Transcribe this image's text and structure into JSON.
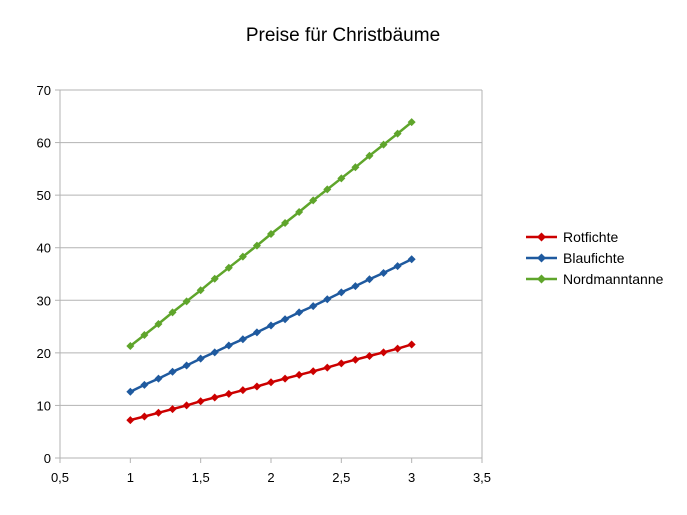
{
  "chart_data": {
    "type": "line",
    "title": "Preise für Christbäume",
    "xlabel": "",
    "ylabel": "",
    "xlim": [
      0.5,
      3.5
    ],
    "ylim": [
      0,
      70
    ],
    "x_ticks": [
      0.5,
      1,
      1.5,
      2,
      2.5,
      3,
      3.5
    ],
    "x_tick_labels": [
      "0,5",
      "1",
      "1,5",
      "2",
      "2,5",
      "3",
      "3,5"
    ],
    "y_ticks": [
      0,
      10,
      20,
      30,
      40,
      50,
      60,
      70
    ],
    "y_tick_labels": [
      "0",
      "10",
      "20",
      "30",
      "40",
      "50",
      "60",
      "70"
    ],
    "grid": "horizontal",
    "legend_position": "right",
    "marker": "diamond",
    "x": [
      1,
      1.1,
      1.2,
      1.3,
      1.4,
      1.5,
      1.6,
      1.7,
      1.8,
      1.9,
      2,
      2.1,
      2.2,
      2.3,
      2.4,
      2.5,
      2.6,
      2.7,
      2.8,
      2.9,
      3
    ],
    "series": [
      {
        "name": "Rotfichte",
        "color": "#cc0000",
        "values": [
          7.2,
          7.9,
          8.6,
          9.3,
          10.0,
          10.8,
          11.5,
          12.2,
          12.9,
          13.6,
          14.4,
          15.1,
          15.8,
          16.5,
          17.2,
          18.0,
          18.7,
          19.4,
          20.1,
          20.8,
          21.6
        ]
      },
      {
        "name": "Blaufichte",
        "color": "#1f5a9f",
        "values": [
          12.6,
          13.9,
          15.1,
          16.4,
          17.6,
          18.9,
          20.1,
          21.4,
          22.6,
          23.9,
          25.2,
          26.4,
          27.7,
          28.9,
          30.2,
          31.5,
          32.7,
          34.0,
          35.2,
          36.5,
          37.8
        ]
      },
      {
        "name": "Nordmanntanne",
        "color": "#5fa52b",
        "values": [
          21.3,
          23.4,
          25.5,
          27.7,
          29.8,
          31.9,
          34.1,
          36.2,
          38.3,
          40.4,
          42.6,
          44.7,
          46.8,
          49.0,
          51.1,
          53.2,
          55.3,
          57.5,
          59.6,
          61.7,
          63.9
        ]
      }
    ]
  }
}
